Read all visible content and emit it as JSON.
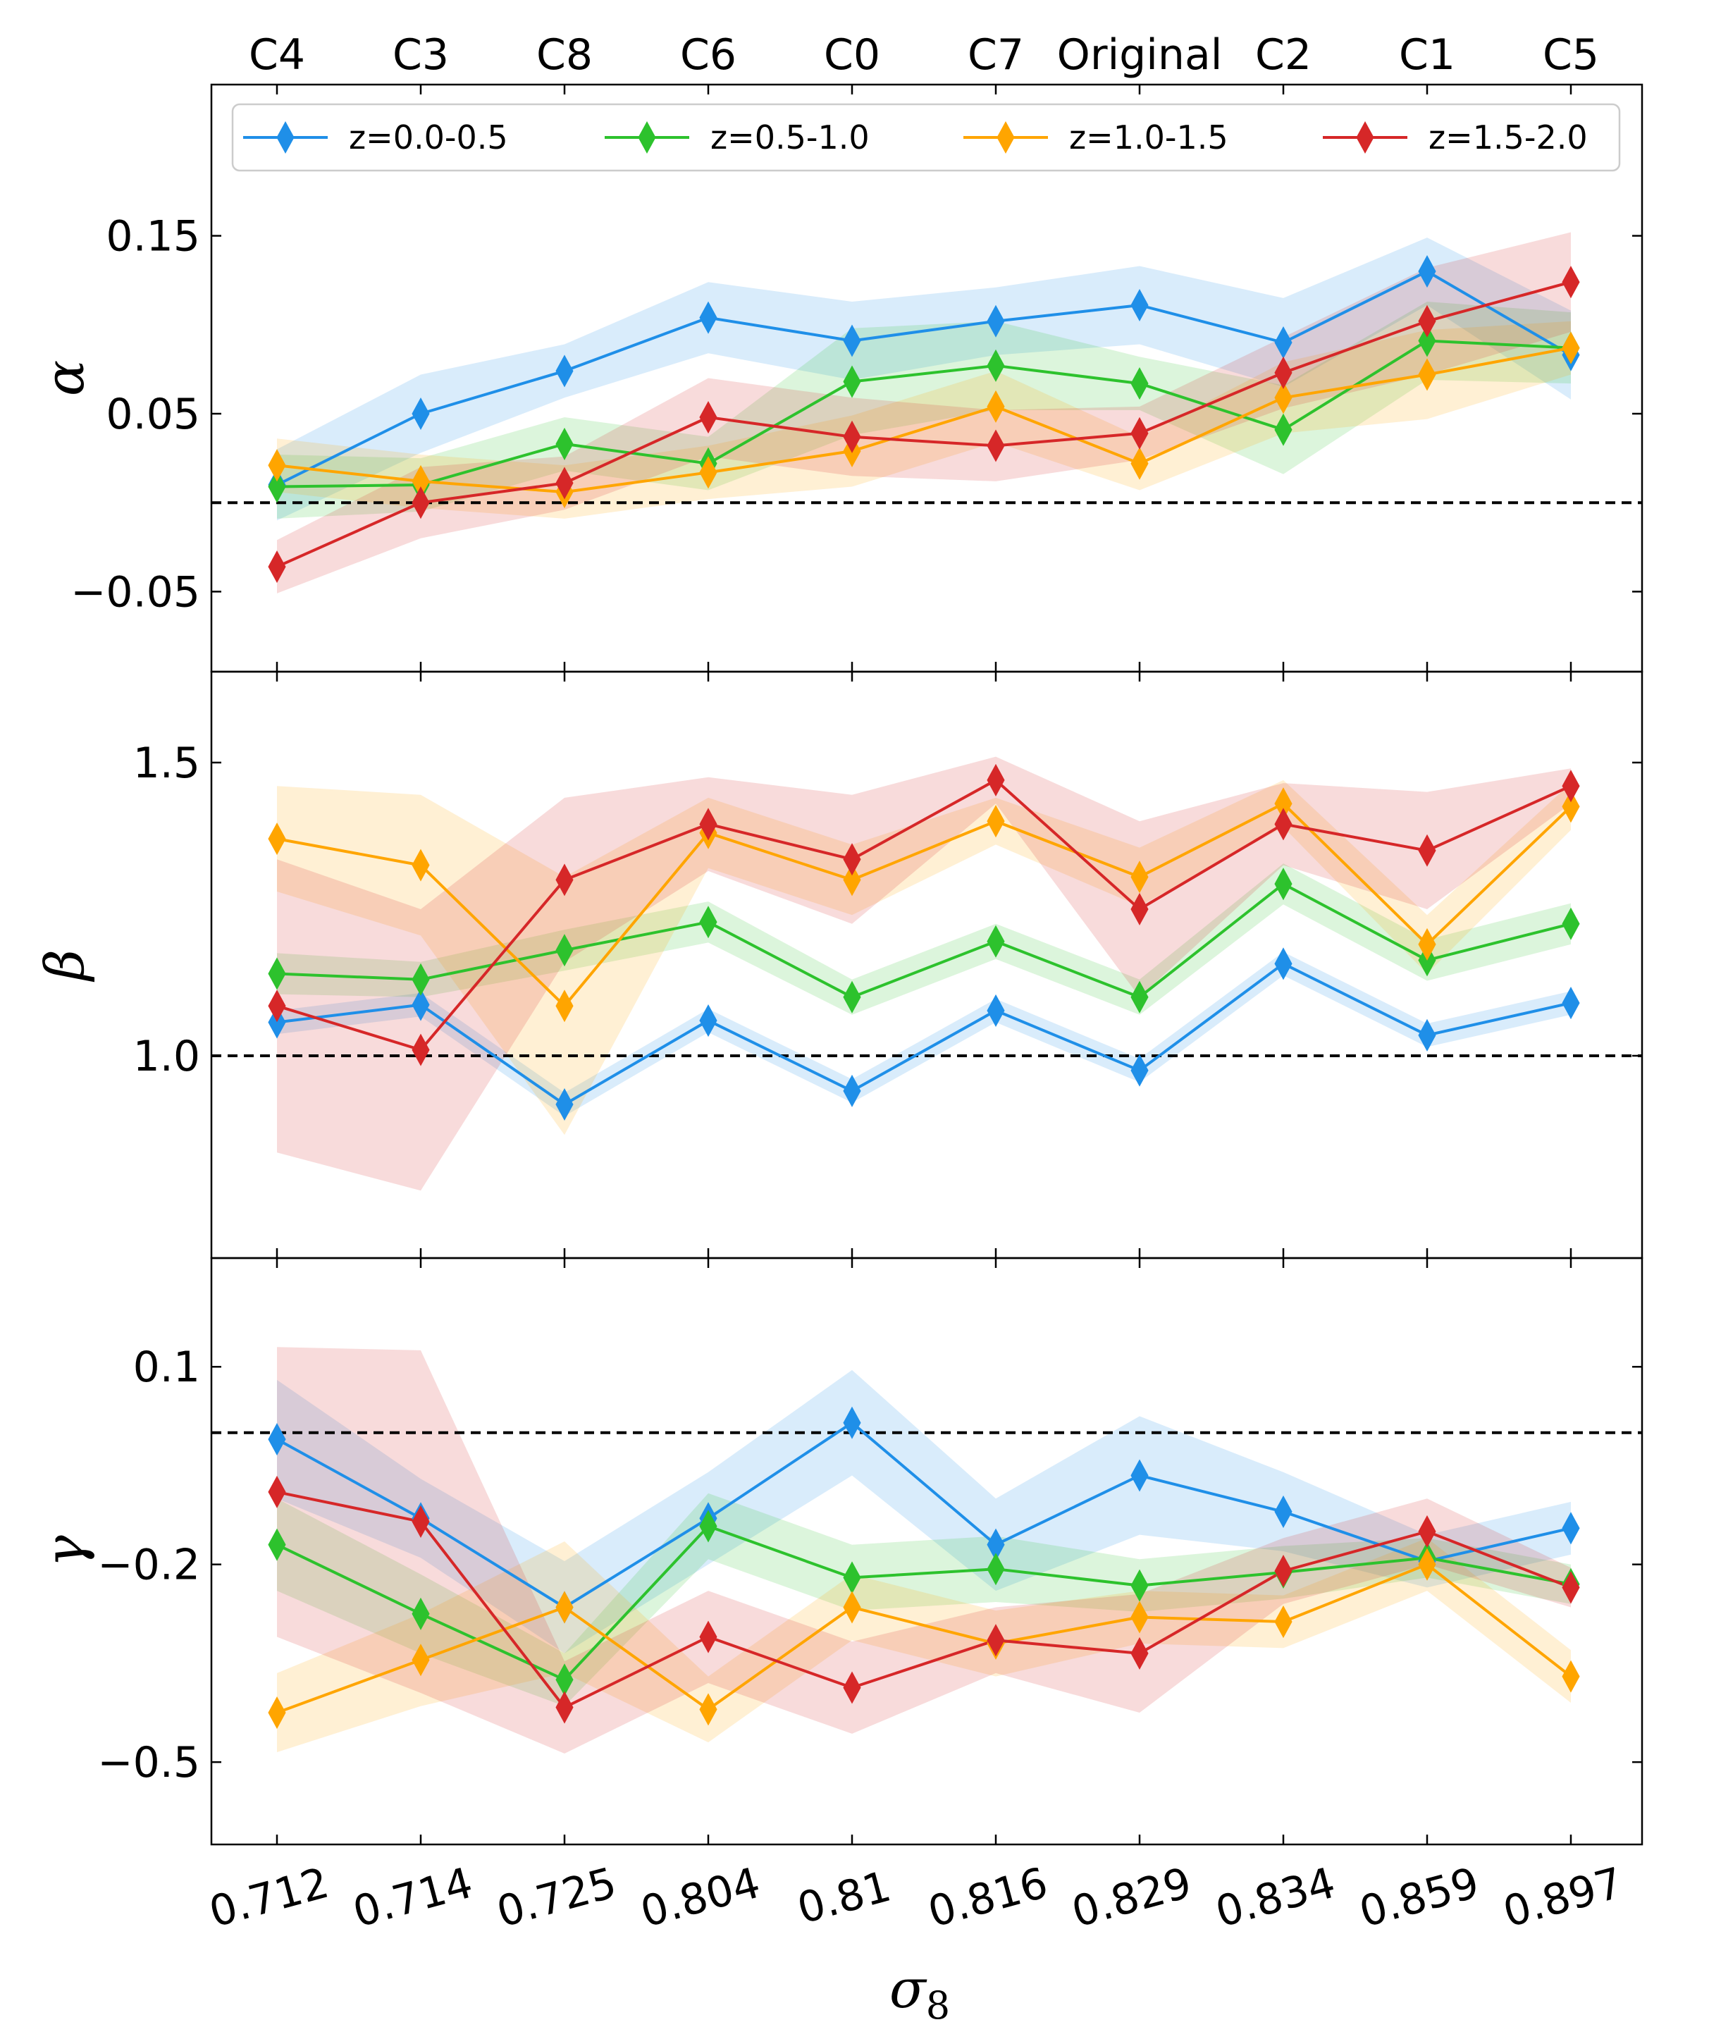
{
  "chart_data": {
    "type": "line",
    "x_label": "σ",
    "x_label_subscript": "8",
    "x_tick_labels": [
      "0.712",
      "0.714",
      "0.725",
      "0.804",
      "0.81",
      "0.816",
      "0.829",
      "0.834",
      "0.859",
      "0.897"
    ],
    "top_tick_labels": [
      "C4",
      "C3",
      "C8",
      "C6",
      "C0",
      "C7",
      "Original",
      "C2",
      "C1",
      "C5"
    ],
    "legend": {
      "position": "top",
      "entries": [
        "z=0.0-0.5",
        "z=0.5-1.0",
        "z=1.0-1.5",
        "z=1.5-2.0"
      ]
    },
    "colors": [
      "#1f8fe8",
      "#2dc22d",
      "#ffa500",
      "#d62728"
    ],
    "panels": [
      {
        "ylabel": "α",
        "ylim": [
          -0.095,
          0.235
        ],
        "yticks": [
          0.15,
          0.05,
          -0.05
        ],
        "ytick_labels": [
          "0.15",
          "0.05",
          "−0.05"
        ],
        "reference_line": 0.0,
        "series": [
          {
            "name": "z=0.0-0.5",
            "values": [
              0.01,
              0.05,
              0.074,
              0.104,
              0.091,
              0.102,
              0.111,
              0.09,
              0.13,
              0.083
            ],
            "err": [
              0.02,
              0.022,
              0.015,
              0.02,
              0.022,
              0.019,
              0.022,
              0.025,
              0.019,
              0.025
            ]
          },
          {
            "name": "z=0.5-1.0",
            "values": [
              0.009,
              0.01,
              0.033,
              0.022,
              0.068,
              0.077,
              0.067,
              0.041,
              0.091,
              0.087
            ],
            "err": [
              0.018,
              0.015,
              0.015,
              0.015,
              0.03,
              0.025,
              0.015,
              0.025,
              0.022,
              0.02
            ]
          },
          {
            "name": "z=1.0-1.5",
            "values": [
              0.021,
              0.012,
              0.006,
              0.017,
              0.029,
              0.054,
              0.022,
              0.059,
              0.072,
              0.087
            ],
            "err": [
              0.015,
              0.015,
              0.015,
              0.015,
              0.02,
              0.02,
              0.015,
              0.02,
              0.025,
              0.015
            ]
          },
          {
            "name": "z=1.5-2.0",
            "values": [
              -0.036,
              0.0,
              0.011,
              0.048,
              0.037,
              0.032,
              0.039,
              0.073,
              0.102,
              0.124
            ],
            "err": [
              0.015,
              0.02,
              0.015,
              0.022,
              0.022,
              0.02,
              0.015,
              0.02,
              0.03,
              0.028
            ]
          }
        ]
      },
      {
        "ylabel": "β",
        "ylim": [
          0.655,
          1.655
        ],
        "yticks": [
          1.5,
          1.0
        ],
        "ytick_labels": [
          "1.5",
          "1.0"
        ],
        "reference_line": 1.0,
        "series": [
          {
            "name": "z=0.0-0.5",
            "values": [
              1.057,
              1.087,
              0.917,
              1.06,
              0.94,
              1.077,
              0.975,
              1.157,
              1.035,
              1.09
            ],
            "err": [
              0.02,
              0.02,
              0.02,
              0.02,
              0.02,
              0.02,
              0.02,
              0.02,
              0.02,
              0.02
            ]
          },
          {
            "name": "z=0.5-1.0",
            "values": [
              1.14,
              1.13,
              1.18,
              1.228,
              1.1,
              1.195,
              1.1,
              1.293,
              1.163,
              1.225
            ],
            "err": [
              0.035,
              0.03,
              0.035,
              0.035,
              0.03,
              0.03,
              0.03,
              0.035,
              0.035,
              0.035
            ]
          },
          {
            "name": "z=1.0-1.5",
            "values": [
              1.37,
              1.325,
              1.085,
              1.38,
              1.3,
              1.4,
              1.305,
              1.43,
              1.19,
              1.425
            ],
            "err": [
              0.09,
              0.12,
              0.22,
              0.06,
              0.06,
              0.04,
              0.05,
              0.04,
              0.05,
              0.04
            ]
          },
          {
            "name": "z=1.5-2.0",
            "values": [
              1.085,
              1.01,
              1.3,
              1.395,
              1.335,
              1.47,
              1.25,
              1.395,
              1.35,
              1.46
            ],
            "err": [
              0.25,
              0.24,
              0.14,
              0.08,
              0.11,
              0.04,
              0.15,
              0.07,
              0.1,
              0.03
            ]
          }
        ]
      },
      {
        "ylabel": "γ",
        "ylim": [
          -0.625,
          0.265
        ],
        "yticks": [
          0.1,
          -0.2,
          -0.5
        ],
        "ytick_labels": [
          "0.1",
          "−0.2",
          "−0.5"
        ],
        "reference_line": 0.0,
        "series": [
          {
            "name": "z=0.0-0.5",
            "values": [
              -0.01,
              -0.13,
              -0.265,
              -0.13,
              0.015,
              -0.17,
              -0.065,
              -0.12,
              -0.195,
              -0.145
            ],
            "err": [
              0.09,
              0.06,
              0.07,
              0.07,
              0.08,
              0.07,
              0.09,
              0.06,
              0.04,
              0.04
            ]
          },
          {
            "name": "z=0.5-1.0",
            "values": [
              -0.17,
              -0.275,
              -0.375,
              -0.142,
              -0.22,
              -0.207,
              -0.232,
              -0.212,
              -0.19,
              -0.23
            ],
            "err": [
              0.07,
              0.06,
              0.04,
              0.05,
              0.05,
              0.05,
              0.04,
              0.04,
              0.03,
              0.03
            ]
          },
          {
            "name": "z=1.0-1.5",
            "values": [
              -0.425,
              -0.345,
              -0.265,
              -0.42,
              -0.265,
              -0.32,
              -0.28,
              -0.287,
              -0.2,
              -0.37
            ],
            "err": [
              0.06,
              0.07,
              0.1,
              0.05,
              0.05,
              0.05,
              0.04,
              0.04,
              0.04,
              0.04
            ]
          },
          {
            "name": "z=1.5-2.0",
            "values": [
              -0.09,
              -0.135,
              -0.417,
              -0.31,
              -0.387,
              -0.315,
              -0.335,
              -0.21,
              -0.15,
              -0.235
            ],
            "err": [
              0.22,
              0.26,
              0.07,
              0.07,
              0.07,
              0.05,
              0.09,
              0.05,
              0.05,
              0.03
            ]
          }
        ]
      }
    ]
  }
}
